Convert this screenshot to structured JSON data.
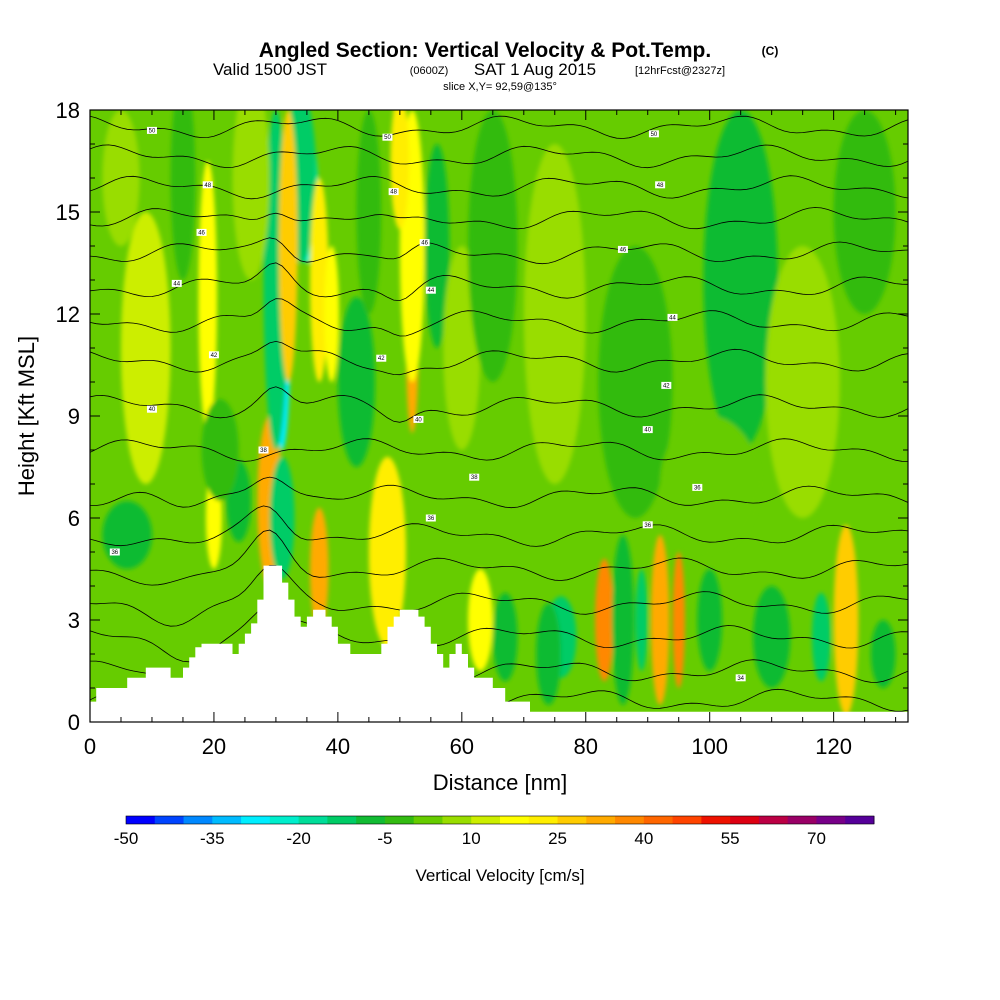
{
  "title": {
    "main": "Angled Section: Vertical Velocity & Pot.Temp.",
    "units_tag": "(C)",
    "valid_prefix": "Valid 1500 JST",
    "valid_utc": "(0600Z)",
    "valid_date": "SAT 1 Aug 2015",
    "forecast": "[12hrFcst@2327z]",
    "slice": "slice X,Y= 92,59@135°"
  },
  "chart_data": {
    "type": "heatmap",
    "xlabel": "Distance [nm]",
    "ylabel": "Height [Kft MSL]",
    "xlim": [
      0,
      132
    ],
    "ylim": [
      0,
      18
    ],
    "x_ticks": [
      0,
      20,
      40,
      60,
      80,
      100,
      120
    ],
    "y_ticks": [
      0,
      3,
      6,
      9,
      12,
      15,
      18
    ],
    "colorbar": {
      "label": "Vertical Velocity [cm/s]",
      "min": -50,
      "step": 5,
      "tick_labels": [
        -50,
        -35,
        -20,
        -5,
        10,
        25,
        40,
        55,
        70
      ],
      "colors": [
        "#0000ff",
        "#0044ff",
        "#0088ff",
        "#00bbff",
        "#00eeff",
        "#00eecc",
        "#00dd99",
        "#00cc66",
        "#11bb33",
        "#33bb11",
        "#66cc00",
        "#99dd00",
        "#ccee00",
        "#ffff00",
        "#ffee00",
        "#ffcc00",
        "#ffaa00",
        "#ff8800",
        "#ff6600",
        "#ff4400",
        "#ee1100",
        "#dd0011",
        "#bb0044",
        "#990066",
        "#770088",
        "#550099"
      ]
    },
    "terrain": [
      [
        0,
        0.6
      ],
      [
        1,
        0.6
      ],
      [
        1,
        1
      ],
      [
        6,
        1
      ],
      [
        6,
        1.3
      ],
      [
        9,
        1.3
      ],
      [
        9,
        1.6
      ],
      [
        13,
        1.6
      ],
      [
        13,
        1.3
      ],
      [
        15,
        1.3
      ],
      [
        15,
        1.6
      ],
      [
        16,
        1.6
      ],
      [
        16,
        1.9
      ],
      [
        17,
        1.9
      ],
      [
        17,
        2.2
      ],
      [
        18,
        2.2
      ],
      [
        18,
        2.3
      ],
      [
        23,
        2.3
      ],
      [
        23,
        2
      ],
      [
        24,
        2
      ],
      [
        24,
        2.3
      ],
      [
        25,
        2.3
      ],
      [
        25,
        2.6
      ],
      [
        26,
        2.6
      ],
      [
        26,
        2.9
      ],
      [
        27,
        2.9
      ],
      [
        27,
        3.6
      ],
      [
        28,
        3.6
      ],
      [
        28,
        4.6
      ],
      [
        31,
        4.6
      ],
      [
        31,
        4.1
      ],
      [
        32,
        4.1
      ],
      [
        32,
        3.6
      ],
      [
        33,
        3.6
      ],
      [
        33,
        3.1
      ],
      [
        34,
        3.1
      ],
      [
        34,
        2.8
      ],
      [
        35,
        2.8
      ],
      [
        35,
        3.1
      ],
      [
        36,
        3.1
      ],
      [
        36,
        3.3
      ],
      [
        38,
        3.3
      ],
      [
        38,
        3.1
      ],
      [
        39,
        3.1
      ],
      [
        39,
        2.8
      ],
      [
        40,
        2.8
      ],
      [
        40,
        2.3
      ],
      [
        42,
        2.3
      ],
      [
        42,
        2
      ],
      [
        47,
        2
      ],
      [
        47,
        2.3
      ],
      [
        48,
        2.3
      ],
      [
        48,
        2.8
      ],
      [
        49,
        2.8
      ],
      [
        49,
        3.1
      ],
      [
        50,
        3.1
      ],
      [
        50,
        3.3
      ],
      [
        53,
        3.3
      ],
      [
        53,
        3.1
      ],
      [
        54,
        3.1
      ],
      [
        54,
        2.8
      ],
      [
        55,
        2.8
      ],
      [
        55,
        2.3
      ],
      [
        56,
        2.3
      ],
      [
        56,
        2
      ],
      [
        57,
        2
      ],
      [
        57,
        1.6
      ],
      [
        58,
        1.6
      ],
      [
        58,
        2
      ],
      [
        59,
        2
      ],
      [
        59,
        2.3
      ],
      [
        60,
        2.3
      ],
      [
        60,
        2
      ],
      [
        61,
        2
      ],
      [
        61,
        1.6
      ],
      [
        62,
        1.6
      ],
      [
        62,
        1.3
      ],
      [
        65,
        1.3
      ],
      [
        65,
        1
      ],
      [
        67,
        1
      ],
      [
        67,
        0.6
      ],
      [
        71,
        0.6
      ],
      [
        71,
        0.3
      ],
      [
        132,
        0.3
      ]
    ],
    "cells": [
      {
        "x": 29,
        "y": 6.5,
        "sx": 0.9,
        "sy": 1.5,
        "v": 60
      },
      {
        "x": 29,
        "y": 6.5,
        "sx": 2,
        "sy": 2.5,
        "v": 30
      },
      {
        "x": 31,
        "y": 6,
        "sx": 2,
        "sy": 1.8,
        "v": -15
      },
      {
        "x": 31,
        "y": 11,
        "sx": 1.3,
        "sy": 3,
        "v": -30
      },
      {
        "x": 30,
        "y": 13,
        "sx": 2,
        "sy": 5,
        "v": -15
      },
      {
        "x": 35,
        "y": 15.5,
        "sx": 1.8,
        "sy": 2,
        "v": -25
      },
      {
        "x": 34,
        "y": 16,
        "sx": 2.5,
        "sy": 2.5,
        "v": -12
      },
      {
        "x": 32,
        "y": 14,
        "sx": 1.5,
        "sy": 4,
        "v": 25
      },
      {
        "x": 37,
        "y": 13,
        "sx": 1.5,
        "sy": 3,
        "v": 20
      },
      {
        "x": 39,
        "y": 12,
        "sx": 1.2,
        "sy": 2,
        "v": 15
      },
      {
        "x": 48,
        "y": 5,
        "sx": 1.8,
        "sy": 2.2,
        "v": 45
      },
      {
        "x": 48,
        "y": 5,
        "sx": 3,
        "sy": 2.8,
        "v": 20
      },
      {
        "x": 37,
        "y": 4.5,
        "sx": 1.5,
        "sy": 1.8,
        "v": 30
      },
      {
        "x": 52,
        "y": 11,
        "sx": 1,
        "sy": 2.5,
        "v": 30
      },
      {
        "x": 52,
        "y": 14,
        "sx": 2,
        "sy": 4,
        "v": 15
      },
      {
        "x": 50,
        "y": 16.5,
        "sx": 1.5,
        "sy": 2,
        "v": 20
      },
      {
        "x": 19,
        "y": 12.5,
        "sx": 1.5,
        "sy": 4,
        "v": 18
      },
      {
        "x": 20,
        "y": 6,
        "sx": 1.3,
        "sy": 1.5,
        "v": 15
      },
      {
        "x": 24,
        "y": 6.5,
        "sx": 2,
        "sy": 1.2,
        "v": -10
      },
      {
        "x": 21,
        "y": 8,
        "sx": 3,
        "sy": 1.5,
        "v": -5
      },
      {
        "x": 43,
        "y": 10,
        "sx": 3,
        "sy": 2.5,
        "v": -8
      },
      {
        "x": 45,
        "y": 15,
        "sx": 2,
        "sy": 3,
        "v": -5
      },
      {
        "x": 56,
        "y": 14,
        "sx": 2,
        "sy": 3,
        "v": -6
      },
      {
        "x": 60,
        "y": 11,
        "sx": 3,
        "sy": 3,
        "v": 8
      },
      {
        "x": 65,
        "y": 14,
        "sx": 4,
        "sy": 4,
        "v": -5
      },
      {
        "x": 9,
        "y": 11,
        "sx": 4,
        "sy": 4,
        "v": 10
      },
      {
        "x": 5,
        "y": 16,
        "sx": 3,
        "sy": 2,
        "v": 8
      },
      {
        "x": 26,
        "y": 16,
        "sx": 3,
        "sy": 3,
        "v": 8
      },
      {
        "x": 83,
        "y": 3,
        "sx": 1.5,
        "sy": 1.8,
        "v": 35
      },
      {
        "x": 86,
        "y": 2.5,
        "sx": 1,
        "sy": 1.6,
        "v": -35
      },
      {
        "x": 86,
        "y": 3,
        "sx": 1.8,
        "sy": 2.5,
        "v": -10
      },
      {
        "x": 92,
        "y": 3,
        "sx": 0.8,
        "sy": 2,
        "v": 60
      },
      {
        "x": 92,
        "y": 3,
        "sx": 1.5,
        "sy": 2.5,
        "v": 30
      },
      {
        "x": 95,
        "y": 3,
        "sx": 1,
        "sy": 2,
        "v": 35
      },
      {
        "x": 89,
        "y": 3,
        "sx": 1,
        "sy": 1.5,
        "v": -15
      },
      {
        "x": 76,
        "y": 2.5,
        "sx": 2.5,
        "sy": 1.2,
        "v": -15
      },
      {
        "x": 74,
        "y": 2,
        "sx": 2,
        "sy": 1.5,
        "v": -8
      },
      {
        "x": 110,
        "y": 2.5,
        "sx": 3,
        "sy": 1.5,
        "v": -10
      },
      {
        "x": 118,
        "y": 2.5,
        "sx": 1.5,
        "sy": 1.3,
        "v": -12
      },
      {
        "x": 122,
        "y": 3,
        "sx": 1.2,
        "sy": 2,
        "v": 55
      },
      {
        "x": 122,
        "y": 3,
        "sx": 2,
        "sy": 2.8,
        "v": 25
      },
      {
        "x": 128,
        "y": 2,
        "sx": 2,
        "sy": 1,
        "v": -6
      },
      {
        "x": 100,
        "y": 3,
        "sx": 2,
        "sy": 1.5,
        "v": -10
      },
      {
        "x": 67,
        "y": 2.5,
        "sx": 2,
        "sy": 1.3,
        "v": -10
      },
      {
        "x": 63,
        "y": 3,
        "sx": 2,
        "sy": 1.5,
        "v": 15
      },
      {
        "x": 88,
        "y": 10,
        "sx": 6,
        "sy": 4,
        "v": -5
      },
      {
        "x": 105,
        "y": 13,
        "sx": 6,
        "sy": 5,
        "v": -6
      },
      {
        "x": 115,
        "y": 10,
        "sx": 6,
        "sy": 4,
        "v": 5
      },
      {
        "x": 75,
        "y": 12,
        "sx": 5,
        "sy": 5,
        "v": 6
      },
      {
        "x": 125,
        "y": 15,
        "sx": 5,
        "sy": 3,
        "v": -5
      },
      {
        "x": 100,
        "y": 7,
        "sx": 8,
        "sy": 2,
        "v": 3
      },
      {
        "x": 15,
        "y": 16,
        "sx": 2,
        "sy": 3,
        "v": -5
      },
      {
        "x": 6,
        "y": 5.5,
        "sx": 4,
        "sy": 1,
        "v": -8
      }
    ],
    "theta_contours": {
      "levels": [
        30,
        31,
        32,
        33,
        34,
        35,
        36,
        37,
        38,
        39,
        40,
        41,
        42,
        43,
        44,
        45,
        46,
        47,
        48,
        49,
        50,
        51,
        52
      ],
      "profile": [
        [
          0,
          29
        ],
        [
          0.3,
          29.5
        ],
        [
          1,
          30.5
        ],
        [
          2,
          31.5
        ],
        [
          3,
          32.5
        ],
        [
          4,
          33.5
        ],
        [
          5,
          34.5
        ],
        [
          6,
          35.5
        ],
        [
          7,
          36.3
        ],
        [
          8,
          37
        ],
        [
          9,
          37.8
        ],
        [
          10,
          38.5
        ],
        [
          11,
          39.3
        ],
        [
          12,
          40.2
        ],
        [
          13,
          41.2
        ],
        [
          14,
          42.2
        ],
        [
          15,
          43.2
        ],
        [
          16,
          44.3
        ],
        [
          17,
          45.4
        ],
        [
          18,
          46.6
        ]
      ],
      "labels": [
        {
          "x": 10,
          "y": 17.4,
          "t": "50"
        },
        {
          "x": 48,
          "y": 17.2,
          "t": "50"
        },
        {
          "x": 91,
          "y": 17.3,
          "t": "50"
        },
        {
          "x": 19,
          "y": 15.8,
          "t": "48"
        },
        {
          "x": 49,
          "y": 15.6,
          "t": "48"
        },
        {
          "x": 92,
          "y": 15.8,
          "t": "48"
        },
        {
          "x": 18,
          "y": 14.4,
          "t": "46"
        },
        {
          "x": 54,
          "y": 14.1,
          "t": "46"
        },
        {
          "x": 86,
          "y": 13.9,
          "t": "46"
        },
        {
          "x": 14,
          "y": 12.9,
          "t": "44"
        },
        {
          "x": 55,
          "y": 12.7,
          "t": "44"
        },
        {
          "x": 94,
          "y": 11.9,
          "t": "44"
        },
        {
          "x": 20,
          "y": 10.8,
          "t": "42"
        },
        {
          "x": 47,
          "y": 10.7,
          "t": "42"
        },
        {
          "x": 93,
          "y": 9.9,
          "t": "42"
        },
        {
          "x": 10,
          "y": 9.2,
          "t": "40"
        },
        {
          "x": 53,
          "y": 8.9,
          "t": "40"
        },
        {
          "x": 90,
          "y": 8.6,
          "t": "40"
        },
        {
          "x": 28,
          "y": 8,
          "t": "38"
        },
        {
          "x": 62,
          "y": 7.2,
          "t": "38"
        },
        {
          "x": 98,
          "y": 6.9,
          "t": "36"
        },
        {
          "x": 55,
          "y": 6,
          "t": "36"
        },
        {
          "x": 90,
          "y": 5.8,
          "t": "36"
        },
        {
          "x": 4,
          "y": 5,
          "t": "36"
        },
        {
          "x": 105,
          "y": 1.3,
          "t": "34"
        }
      ]
    }
  }
}
